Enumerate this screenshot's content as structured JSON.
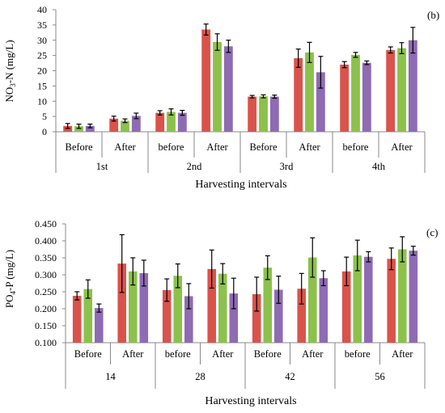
{
  "colors": {
    "series1": "#d9534b",
    "series2": "#8cc14c",
    "series3": "#8e6bb3",
    "error": "#000000"
  },
  "chart_data": [
    {
      "panel": "(b)",
      "type": "bar",
      "ylabel_main": "NO",
      "ylabel_sub": "3",
      "ylabel_rest": "-N (mg/L)",
      "xlabel": "Harvesting intervals",
      "ylim": [
        0,
        40
      ],
      "yticks": [
        "0",
        "5",
        "10",
        "15",
        "20",
        "25",
        "30",
        "35",
        "40"
      ],
      "yticks_values": [
        0,
        5,
        10,
        15,
        20,
        25,
        30,
        35,
        40
      ],
      "groups": [
        "1st",
        "2nd",
        "3rd",
        "4th"
      ],
      "categories": [
        "Before",
        "After",
        "before",
        "After",
        "Before",
        "After",
        "before",
        "After"
      ],
      "series": [
        {
          "values": [
            1.9,
            4.3,
            6.2,
            33.5,
            11.5,
            24.1,
            22.0,
            26.8
          ],
          "errors": [
            0.8,
            0.8,
            0.7,
            1.8,
            0.4,
            3.0,
            1.0,
            1.0
          ]
        },
        {
          "values": [
            1.8,
            3.6,
            6.5,
            29.4,
            11.6,
            26.0,
            25.2,
            27.4
          ],
          "errors": [
            0.7,
            0.6,
            1.0,
            2.7,
            0.5,
            3.3,
            0.8,
            1.8
          ]
        },
        {
          "values": [
            1.9,
            5.2,
            6.2,
            28.0,
            11.5,
            19.5,
            22.6,
            30.0
          ],
          "errors": [
            0.6,
            0.9,
            0.8,
            2.0,
            0.5,
            5.2,
            0.6,
            4.2
          ]
        }
      ]
    },
    {
      "panel": "(c)",
      "type": "bar",
      "ylabel_main": "PO",
      "ylabel_sub": "4",
      "ylabel_rest": "-P (mg/L)",
      "xlabel": "Harvesting intervals",
      "ylim": [
        0.1,
        0.45
      ],
      "yticks": [
        "0.100",
        "0.150",
        "0.200",
        "0.250",
        "0.300",
        "0.350",
        "0.400",
        "0.450"
      ],
      "yticks_values": [
        0.1,
        0.15,
        0.2,
        0.25,
        0.3,
        0.35,
        0.4,
        0.45
      ],
      "groups": [
        "14",
        "28",
        "42",
        "56"
      ],
      "categories": [
        "Before",
        "After",
        "before",
        "After",
        "Before",
        "After",
        "before",
        "After"
      ],
      "series": [
        {
          "values": [
            0.238,
            0.333,
            0.255,
            0.317,
            0.243,
            0.259,
            0.31,
            0.347
          ],
          "errors": [
            0.012,
            0.085,
            0.033,
            0.056,
            0.05,
            0.045,
            0.042,
            0.032
          ]
        },
        {
          "values": [
            0.258,
            0.31,
            0.297,
            0.303,
            0.321,
            0.351,
            0.357,
            0.375
          ],
          "errors": [
            0.027,
            0.04,
            0.035,
            0.03,
            0.035,
            0.058,
            0.045,
            0.037
          ]
        },
        {
          "values": [
            0.202,
            0.305,
            0.237,
            0.245,
            0.256,
            0.29,
            0.353,
            0.371
          ],
          "errors": [
            0.012,
            0.038,
            0.037,
            0.045,
            0.04,
            0.022,
            0.015,
            0.013
          ]
        }
      ]
    }
  ]
}
